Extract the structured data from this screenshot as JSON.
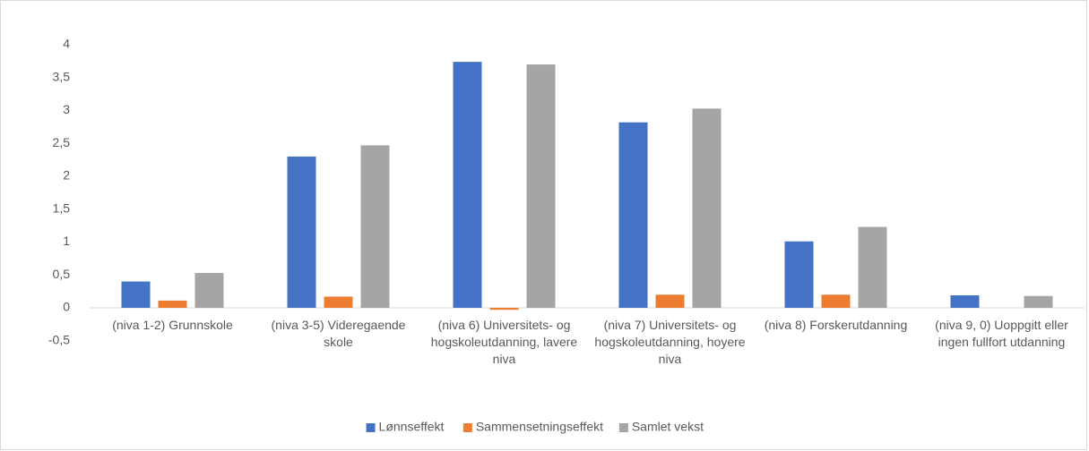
{
  "chart_data": {
    "type": "bar",
    "categories": [
      "(niva 1-2) Grunnskole",
      "(niva 3-5) Videregaende skole",
      "(niva 6) Universitets- og hogskoleutdanning, lavere niva",
      "(niva 7) Universitets- og hogskoleutdanning, hoyere niva",
      "(niva 8) Forskerutdanning",
      "(niva 9, 0) Uoppgitt eller ingen fullfort utdanning"
    ],
    "series": [
      {
        "name": "Lønnseffekt",
        "color": "#4472c4",
        "values": [
          0.4,
          2.3,
          3.74,
          2.82,
          1.01,
          0.19
        ]
      },
      {
        "name": "Sammensetningseffekt",
        "color": "#ed7d31",
        "values": [
          0.11,
          0.17,
          -0.03,
          0.2,
          0.2,
          0
        ]
      },
      {
        "name": "Samlet vekst",
        "color": "#a5a5a5",
        "values": [
          0.53,
          2.47,
          3.7,
          3.03,
          1.23,
          0.18
        ]
      }
    ],
    "ylim": [
      -0.5,
      4
    ],
    "yticks": [
      {
        "value": -0.5,
        "label": "-0,5"
      },
      0,
      {
        "value": 0.5,
        "label": "0,5"
      },
      1,
      {
        "value": 1.5,
        "label": "1,5"
      },
      2,
      {
        "value": 2.5,
        "label": "2,5"
      },
      3,
      {
        "value": 3.5,
        "label": "3,5"
      },
      4
    ],
    "grid": false,
    "legend": "bottom"
  }
}
